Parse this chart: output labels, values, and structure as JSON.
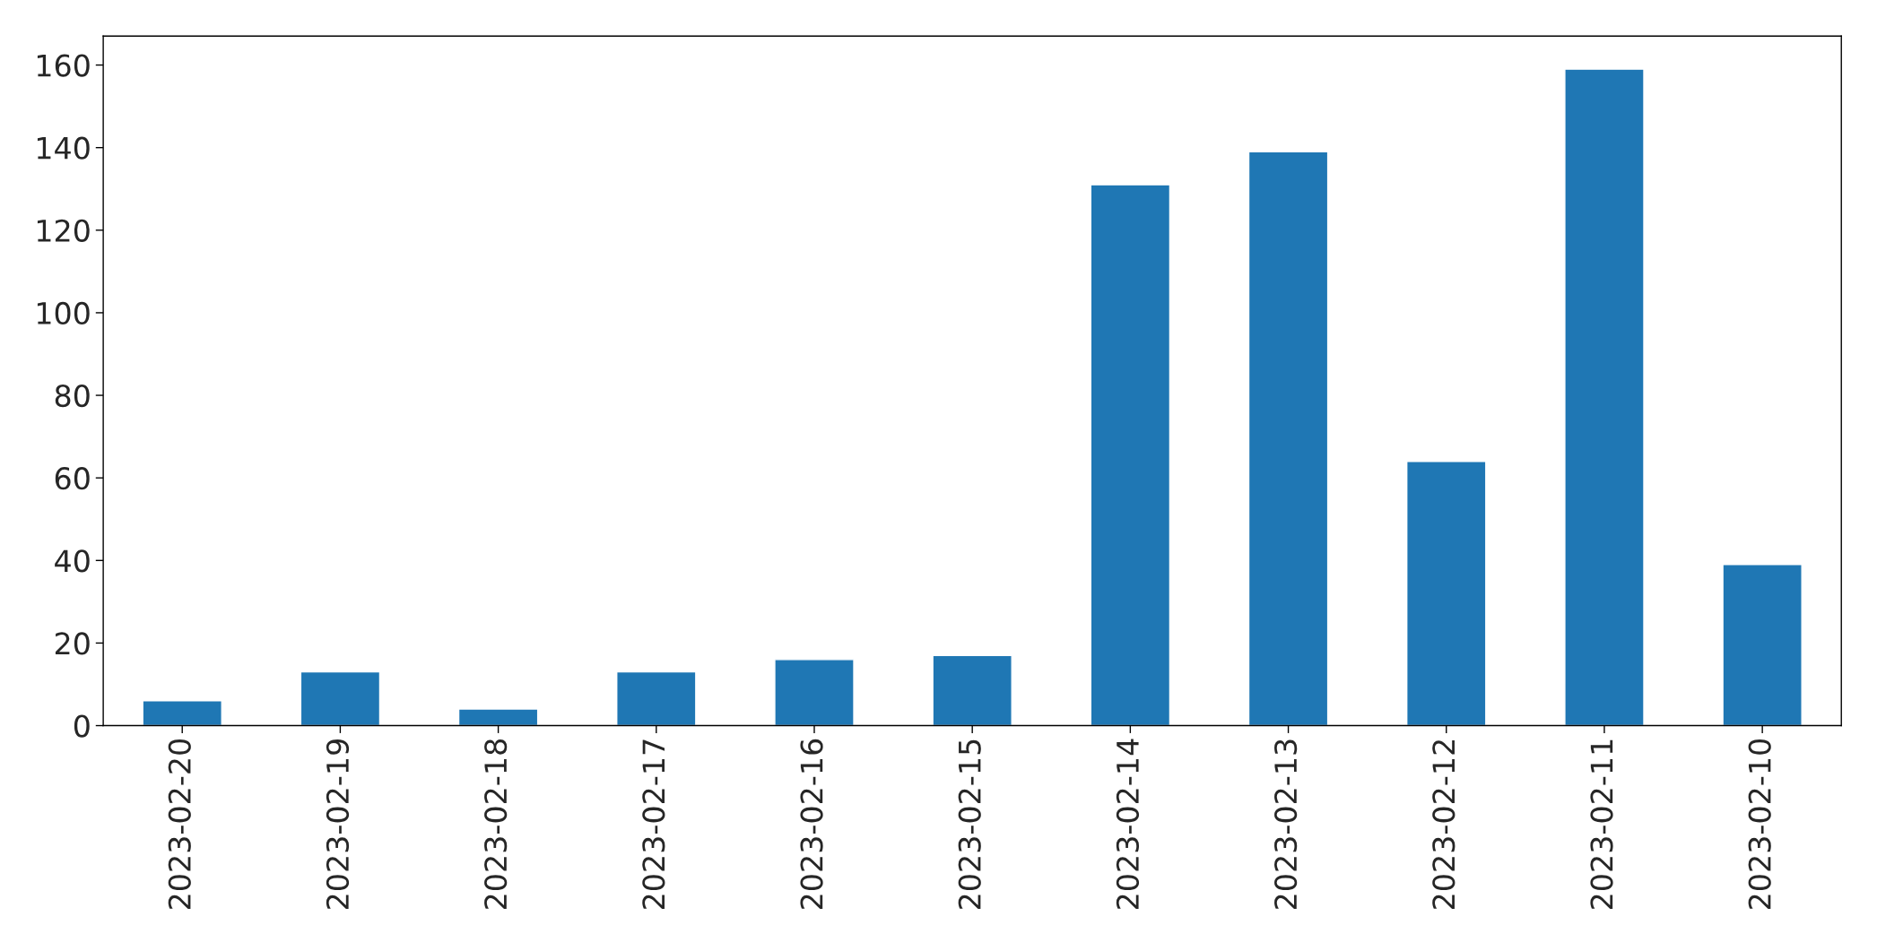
{
  "chart_data": {
    "type": "bar",
    "categories": [
      "2023-02-20",
      "2023-02-19",
      "2023-02-18",
      "2023-02-17",
      "2023-02-16",
      "2023-02-15",
      "2023-02-14",
      "2023-02-13",
      "2023-02-12",
      "2023-02-11",
      "2023-02-10"
    ],
    "values": [
      6,
      13,
      4,
      13,
      16,
      17,
      131,
      139,
      64,
      159,
      39
    ],
    "color": "#1f77b4",
    "ylim": [
      0,
      167
    ],
    "yticks": [
      0,
      20,
      40,
      60,
      80,
      100,
      120,
      140,
      160
    ],
    "grid": false,
    "legend": false
  }
}
